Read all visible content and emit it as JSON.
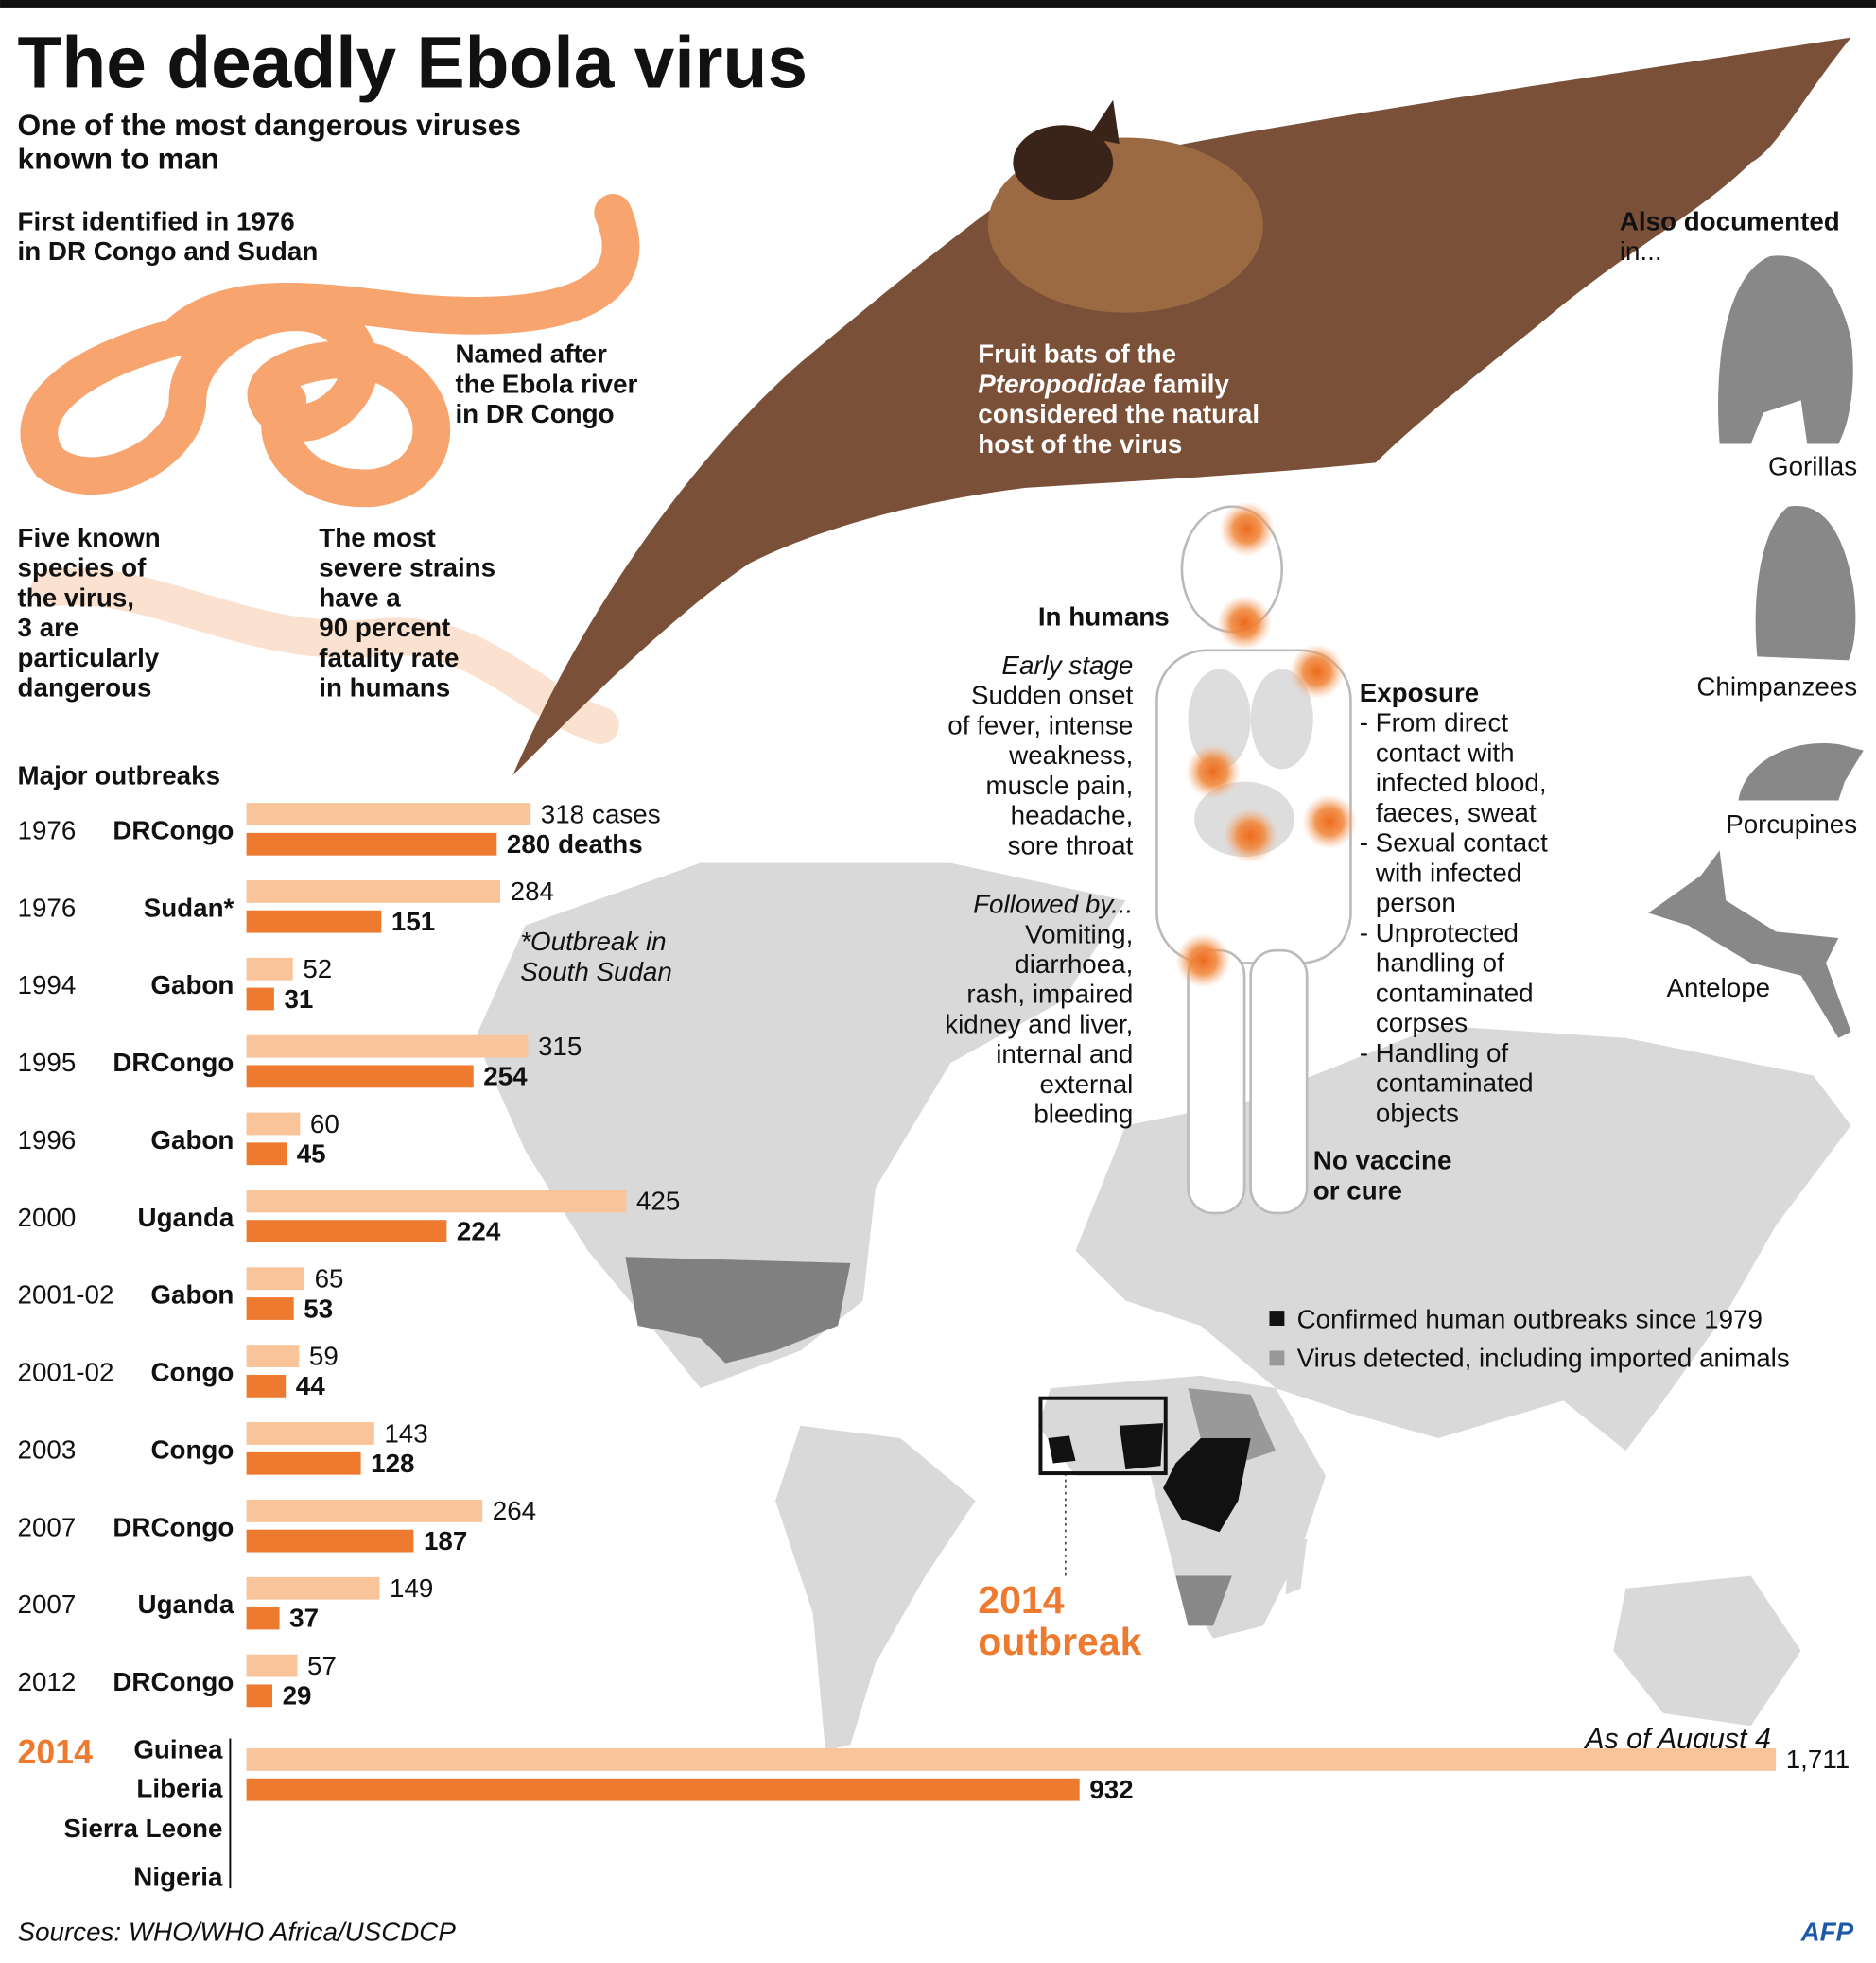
{
  "title": "The deadly Ebola virus",
  "subtitle": [
    "One of the most dangerous viruses",
    "known to man"
  ],
  "first_identified": [
    "First identified in 1976",
    "in DR Congo and Sudan"
  ],
  "named_after": [
    "Named after",
    "the Ebola river",
    "in DR Congo"
  ],
  "five_species": [
    "Five known",
    "species of",
    "the virus,",
    "3 are",
    "particularly",
    "dangerous"
  ],
  "severe_strains": [
    "The most",
    "severe strains",
    "have a",
    "90 percent",
    "fatality rate",
    "in humans"
  ],
  "fruit_bats": [
    "Fruit bats of the",
    [
      "Pteropodidae",
      "family"
    ],
    "considered the natural",
    "host of the virus"
  ],
  "also_documented": {
    "heading": "Also documented",
    "sub": "in...",
    "animals": [
      "Gorillas",
      "Chimpanzees",
      "Porcupines",
      "Antelope"
    ]
  },
  "in_humans": "In humans",
  "early_stage": {
    "heading": "Early stage",
    "lines": [
      "Sudden onset",
      "of fever, intense",
      "weakness,",
      "muscle pain,",
      "headache,",
      "sore throat"
    ]
  },
  "followed_by": {
    "heading": "Followed by...",
    "lines": [
      "Vomiting,",
      "diarrhoea,",
      "rash, impaired",
      "kidney and liver,",
      "internal and",
      "external",
      "bleeding"
    ]
  },
  "exposure": {
    "heading": "Exposure",
    "items": [
      [
        "- From direct",
        "contact with",
        "infected blood,",
        "faeces, sweat"
      ],
      [
        "- Sexual contact",
        "with infected",
        "person"
      ],
      [
        "- Unprotected",
        "handling of",
        "contaminated",
        "corpses"
      ],
      [
        "- Handling of",
        "contaminated",
        "objects"
      ]
    ]
  },
  "no_vaccine": [
    "No vaccine",
    "or cure"
  ],
  "map_legend": [
    "Confirmed human outbreaks since 1979",
    "Virus detected, including imported animals"
  ],
  "outbreak_2014": [
    "2014",
    "outbreak"
  ],
  "chart_data": {
    "type": "bar",
    "title": "Major outbreaks",
    "years": [
      "1976",
      "1976",
      "1994",
      "1995",
      "1996",
      "2000",
      "2001-02",
      "2001-02",
      "2003",
      "2007",
      "2007",
      "2012",
      "2014"
    ],
    "categories": [
      "DRCongo",
      "Sudan*",
      "Gabon",
      "DRCongo",
      "Gabon",
      "Uganda",
      "Gabon",
      "Congo",
      "Congo",
      "DRCongo",
      "Uganda",
      "DRCongo",
      [
        "Guinea",
        "Liberia",
        "Sierra Leone",
        "Nigeria"
      ]
    ],
    "series": [
      {
        "name": "cases",
        "color": "#f9c49a",
        "values": [
          318,
          284,
          52,
          315,
          60,
          425,
          65,
          59,
          143,
          264,
          149,
          57,
          1711
        ],
        "value_labels": [
          "318",
          "284",
          "52",
          "315",
          "60",
          "425",
          "65",
          "59",
          "143",
          "264",
          "149",
          "57",
          "1,711"
        ]
      },
      {
        "name": "deaths",
        "color": "#ee7a30",
        "values": [
          280,
          151,
          31,
          254,
          45,
          224,
          53,
          44,
          128,
          187,
          37,
          29,
          932
        ]
      }
    ],
    "xlim": [
      0,
      1711
    ],
    "note": [
      "*Outbreak in",
      "South Sudan"
    ],
    "as_of": "As of August 4"
  },
  "sources": "Sources: WHO/WHO Africa/USCDCP",
  "logo": "AFP"
}
